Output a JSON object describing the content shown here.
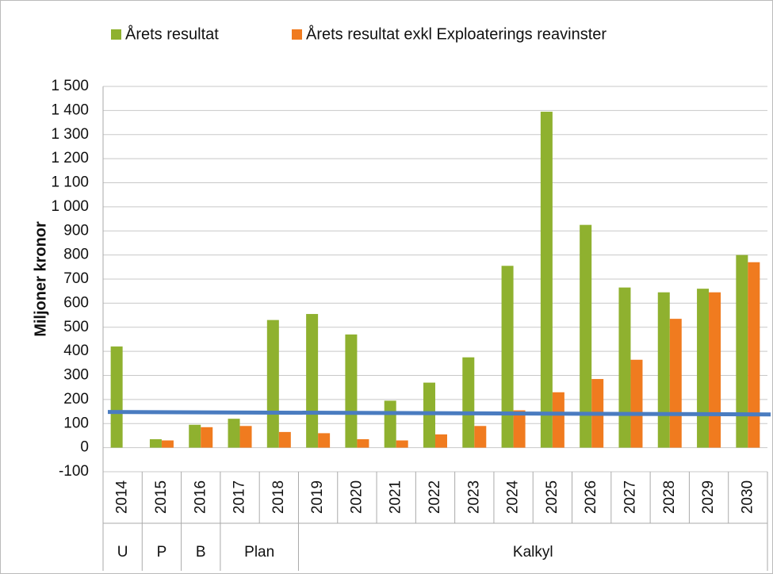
{
  "chart_data": {
    "type": "bar",
    "legend": "top",
    "y_label": "Miljoner kronor",
    "categories": [
      "2014",
      "2015",
      "2016",
      "2017",
      "2018",
      "2019",
      "2020",
      "2021",
      "2022",
      "2023",
      "2024",
      "2025",
      "2026",
      "2027",
      "2028",
      "2029",
      "2030"
    ],
    "groups": [
      {
        "label": "U",
        "span": 1
      },
      {
        "label": "P",
        "span": 1
      },
      {
        "label": "B",
        "span": 1
      },
      {
        "label": "Plan",
        "span": 2
      },
      {
        "label": "Kalkyl",
        "span": 12
      }
    ],
    "series": [
      {
        "name": "Årets resultat",
        "color": "#8fb12f",
        "values": [
          420,
          35,
          95,
          120,
          530,
          555,
          470,
          195,
          270,
          375,
          755,
          1395,
          925,
          665,
          645,
          660,
          800
        ]
      },
      {
        "name": "Årets resultat exkl Exploaterings reavinster",
        "color": "#f07b1f",
        "values": [
          null,
          30,
          85,
          90,
          65,
          60,
          35,
          30,
          55,
          90,
          155,
          230,
          285,
          365,
          535,
          645,
          770
        ]
      }
    ],
    "reference_line": {
      "color": "#4a7cc0",
      "values": [
        148,
        138
      ]
    },
    "ylim": [
      -100,
      1500
    ],
    "yticks": [
      -100,
      0,
      100,
      200,
      300,
      400,
      500,
      600,
      700,
      800,
      900,
      {
        "value": 1000,
        "label": "1 000"
      },
      {
        "value": 1100,
        "label": "1 100"
      },
      {
        "value": 1200,
        "label": "1 200"
      },
      {
        "value": 1300,
        "label": "1 300"
      },
      {
        "value": 1400,
        "label": "1 400"
      },
      {
        "value": 1500,
        "label": "1 500"
      }
    ],
    "grid": true
  }
}
